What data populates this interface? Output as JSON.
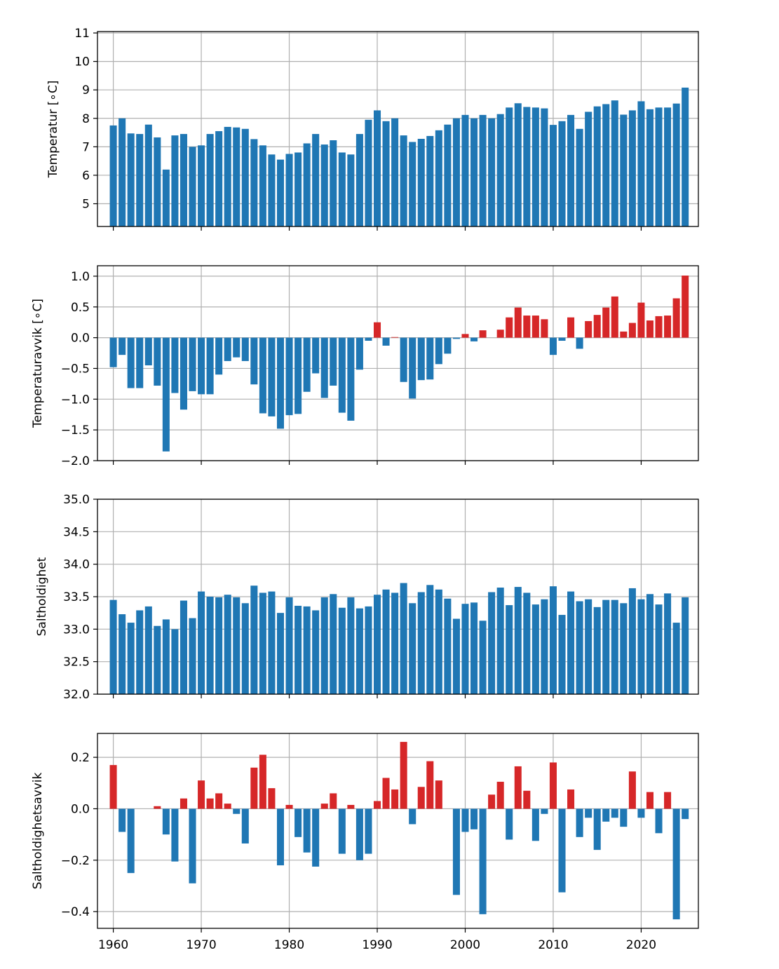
{
  "colors": {
    "positive": "#d62728",
    "negative": "#1f77b4",
    "default": "#1f77b4",
    "grid": "#b0b0b0"
  },
  "chart_data": [
    {
      "type": "bar",
      "ylabel": "Temperatur [∘C]",
      "ylim": [
        4.2,
        11.05
      ],
      "yticks": [
        5,
        6,
        7,
        8,
        9,
        10,
        11
      ],
      "ytick_labels": [
        "5",
        "6",
        "7",
        "8",
        "9",
        "10",
        "11"
      ],
      "xlim": [
        1958.2,
        2026.5
      ],
      "xticks": [
        1960,
        1970,
        1980,
        1990,
        2000,
        2010,
        2020
      ],
      "xtick_labels": [],
      "grid": true,
      "color_mode": "single",
      "x": [
        1960,
        1961,
        1962,
        1963,
        1964,
        1965,
        1966,
        1967,
        1968,
        1969,
        1970,
        1971,
        1972,
        1973,
        1974,
        1975,
        1976,
        1977,
        1978,
        1979,
        1980,
        1981,
        1982,
        1983,
        1984,
        1985,
        1986,
        1987,
        1988,
        1989,
        1990,
        1991,
        1992,
        1993,
        1994,
        1995,
        1996,
        1997,
        1998,
        1999,
        2000,
        2001,
        2002,
        2003,
        2004,
        2005,
        2006,
        2007,
        2008,
        2009,
        2010,
        2011,
        2012,
        2013,
        2014,
        2015,
        2016,
        2017,
        2018,
        2019,
        2020,
        2021,
        2022,
        2023,
        2024,
        2025
      ],
      "values": [
        7.75,
        8.0,
        7.47,
        7.45,
        7.78,
        7.33,
        6.2,
        7.4,
        7.45,
        7.0,
        7.05,
        7.45,
        7.55,
        7.7,
        7.68,
        7.63,
        7.27,
        7.05,
        6.73,
        6.55,
        6.75,
        6.8,
        7.12,
        7.45,
        7.08,
        7.23,
        6.8,
        6.73,
        7.45,
        7.95,
        8.28,
        7.9,
        8.0,
        7.4,
        7.17,
        7.28,
        7.38,
        7.58,
        7.78,
        8.0,
        8.12,
        8.0,
        8.12,
        8.0,
        8.15,
        8.38,
        8.53,
        8.4,
        8.38,
        8.35,
        7.77,
        7.9,
        8.12,
        7.63,
        8.23,
        8.42,
        8.5,
        8.63,
        8.13,
        8.28,
        8.6,
        8.32,
        8.38,
        8.38,
        8.52,
        9.08
      ]
    },
    {
      "type": "bar",
      "ylabel": "Temperaturavvik [∘C]",
      "ylim": [
        -2.0,
        1.17
      ],
      "yticks": [
        -2.0,
        -1.5,
        -1.0,
        -0.5,
        0.0,
        0.5,
        1.0
      ],
      "ytick_labels": [
        "−2.0",
        "−1.5",
        "−1.0",
        "−0.5",
        "0.0",
        "0.5",
        "1.0"
      ],
      "xlim": [
        1958.2,
        2026.5
      ],
      "xticks": [
        1960,
        1970,
        1980,
        1990,
        2000,
        2010,
        2020
      ],
      "xtick_labels": [],
      "grid": true,
      "color_mode": "sign",
      "x": [
        1960,
        1961,
        1962,
        1963,
        1964,
        1965,
        1966,
        1967,
        1968,
        1969,
        1970,
        1971,
        1972,
        1973,
        1974,
        1975,
        1976,
        1977,
        1978,
        1979,
        1980,
        1981,
        1982,
        1983,
        1984,
        1985,
        1986,
        1987,
        1988,
        1989,
        1990,
        1991,
        1992,
        1993,
        1994,
        1995,
        1996,
        1997,
        1998,
        1999,
        2000,
        2001,
        2002,
        2003,
        2004,
        2005,
        2006,
        2007,
        2008,
        2009,
        2010,
        2011,
        2012,
        2013,
        2014,
        2015,
        2016,
        2017,
        2018,
        2019,
        2020,
        2021,
        2022,
        2023,
        2024,
        2025
      ],
      "values": [
        -0.48,
        -0.28,
        -0.82,
        -0.82,
        -0.45,
        -0.78,
        -1.85,
        -0.9,
        -1.17,
        -0.87,
        -0.92,
        -0.92,
        -0.6,
        -0.38,
        -0.32,
        -0.38,
        -0.76,
        -1.23,
        -1.28,
        -1.48,
        -1.26,
        -1.24,
        -0.88,
        -0.58,
        -0.98,
        -0.78,
        -1.22,
        -1.35,
        -0.52,
        -0.05,
        0.25,
        -0.13,
        0.01,
        -0.72,
        -0.99,
        -0.69,
        -0.68,
        -0.43,
        -0.26,
        -0.02,
        0.06,
        -0.06,
        0.12,
        0.0,
        0.13,
        0.33,
        0.49,
        0.36,
        0.36,
        0.3,
        -0.28,
        -0.05,
        0.33,
        -0.18,
        0.27,
        0.37,
        0.49,
        0.67,
        0.1,
        0.24,
        0.57,
        0.28,
        0.35,
        0.36,
        0.64,
        1.01
      ]
    },
    {
      "type": "bar",
      "ylabel": "Saltholdighet",
      "ylim": [
        32.0,
        35.0
      ],
      "yticks": [
        32.0,
        32.5,
        33.0,
        33.5,
        34.0,
        34.5,
        35.0
      ],
      "ytick_labels": [
        "32.0",
        "32.5",
        "33.0",
        "33.5",
        "34.0",
        "34.5",
        "35.0"
      ],
      "xlim": [
        1958.2,
        2026.5
      ],
      "xticks": [
        1960,
        1970,
        1980,
        1990,
        2000,
        2010,
        2020
      ],
      "xtick_labels": [],
      "grid": true,
      "color_mode": "single",
      "x": [
        1960,
        1961,
        1962,
        1963,
        1964,
        1965,
        1966,
        1967,
        1968,
        1969,
        1970,
        1971,
        1972,
        1973,
        1974,
        1975,
        1976,
        1977,
        1978,
        1979,
        1980,
        1981,
        1982,
        1983,
        1984,
        1985,
        1986,
        1987,
        1988,
        1989,
        1990,
        1991,
        1992,
        1993,
        1994,
        1995,
        1996,
        1997,
        1998,
        1999,
        2000,
        2001,
        2002,
        2003,
        2004,
        2005,
        2006,
        2007,
        2008,
        2009,
        2010,
        2011,
        2012,
        2013,
        2014,
        2015,
        2016,
        2017,
        2018,
        2019,
        2020,
        2021,
        2022,
        2023,
        2024,
        2025
      ],
      "values": [
        33.45,
        33.23,
        33.1,
        33.29,
        33.35,
        33.05,
        33.15,
        33.0,
        33.44,
        33.17,
        33.58,
        33.5,
        33.49,
        33.53,
        33.49,
        33.4,
        33.67,
        33.56,
        33.58,
        33.25,
        33.49,
        33.36,
        33.35,
        33.29,
        33.49,
        33.54,
        33.33,
        33.49,
        33.32,
        33.35,
        33.53,
        33.61,
        33.56,
        33.71,
        33.4,
        33.57,
        33.68,
        33.61,
        33.47,
        33.16,
        33.39,
        33.41,
        33.13,
        33.57,
        33.64,
        33.37,
        33.65,
        33.56,
        33.38,
        33.46,
        33.66,
        33.22,
        33.58,
        33.43,
        33.46,
        33.34,
        33.45,
        33.45,
        33.4,
        33.63,
        33.46,
        33.54,
        33.38,
        33.55,
        33.1,
        33.49
      ]
    },
    {
      "type": "bar",
      "ylabel": "Saltholdighetsavvik",
      "ylim": [
        -0.465,
        0.293
      ],
      "yticks": [
        -0.4,
        -0.2,
        0.0,
        0.2
      ],
      "ytick_labels": [
        "−0.4",
        "−0.2",
        "0.0",
        "0.2"
      ],
      "xlim": [
        1958.2,
        2026.5
      ],
      "xticks": [
        1960,
        1970,
        1980,
        1990,
        2000,
        2010,
        2020
      ],
      "xtick_labels": [
        "1960",
        "1970",
        "1980",
        "1990",
        "2000",
        "2010",
        "2020"
      ],
      "grid": true,
      "color_mode": "sign",
      "x": [
        1960,
        1961,
        1962,
        1963,
        1964,
        1965,
        1966,
        1967,
        1968,
        1969,
        1970,
        1971,
        1972,
        1973,
        1974,
        1975,
        1976,
        1977,
        1978,
        1979,
        1980,
        1981,
        1982,
        1983,
        1984,
        1985,
        1986,
        1987,
        1988,
        1989,
        1990,
        1991,
        1992,
        1993,
        1994,
        1995,
        1996,
        1997,
        1998,
        1999,
        2000,
        2001,
        2002,
        2003,
        2004,
        2005,
        2006,
        2007,
        2008,
        2009,
        2010,
        2011,
        2012,
        2013,
        2014,
        2015,
        2016,
        2017,
        2018,
        2019,
        2020,
        2021,
        2022,
        2023,
        2024,
        2025
      ],
      "values": [
        0.17,
        -0.09,
        -0.25,
        0.0,
        0.0,
        0.01,
        -0.1,
        -0.205,
        0.04,
        -0.29,
        0.11,
        0.04,
        0.06,
        0.02,
        -0.02,
        -0.135,
        0.16,
        0.21,
        0.08,
        -0.22,
        0.015,
        -0.11,
        -0.17,
        -0.225,
        0.02,
        0.06,
        -0.175,
        0.015,
        -0.2,
        -0.175,
        0.03,
        0.12,
        0.075,
        0.26,
        -0.06,
        0.085,
        0.185,
        0.11,
        0.0,
        -0.335,
        -0.09,
        -0.08,
        -0.41,
        0.055,
        0.105,
        -0.12,
        0.165,
        0.07,
        -0.125,
        -0.02,
        0.18,
        -0.325,
        0.075,
        -0.11,
        -0.035,
        -0.16,
        -0.05,
        -0.035,
        -0.07,
        0.145,
        -0.035,
        0.065,
        -0.095,
        0.065,
        -0.43,
        -0.04
      ]
    }
  ]
}
